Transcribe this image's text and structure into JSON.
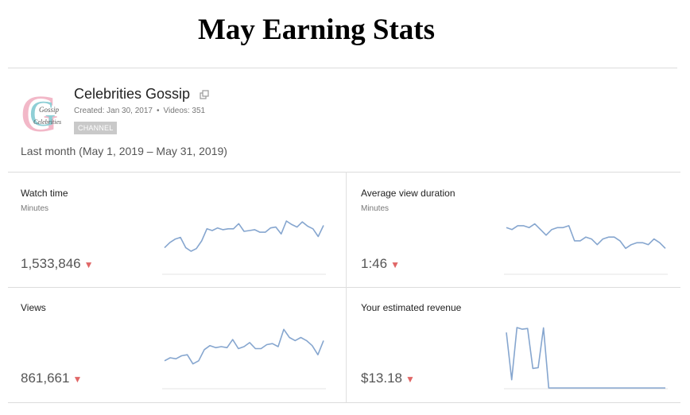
{
  "header": {
    "title": "May Earning Stats"
  },
  "channel": {
    "name": "Celebrities Gossip",
    "created": "Created: Jan 30, 2017",
    "videos": "Videos: 351",
    "badge": "CHANNEL",
    "logo_letters": "G",
    "logo_text_top": "Gossip",
    "logo_text_bottom": "Celebrities"
  },
  "period": "Last month (May 1, 2019 – May 31, 2019)",
  "colors": {
    "line": "#86a6cf",
    "down": "#e06666",
    "baseline": "#e6e6e6"
  },
  "metrics": [
    {
      "label": "Watch time",
      "sublabel": "Minutes",
      "value": "1,533,846",
      "trend": "down",
      "series": [
        30,
        36,
        40,
        42,
        30,
        26,
        29,
        38,
        52,
        50,
        53,
        51,
        52,
        52,
        58,
        49,
        50,
        51,
        48,
        48,
        53,
        54,
        46,
        61,
        57,
        54,
        60,
        55,
        52,
        43,
        56
      ]
    },
    {
      "label": "Average view duration",
      "sublabel": "",
      "value": "1:46",
      "trend": "down",
      "series": [
        104,
        103,
        105,
        105,
        104,
        106,
        103,
        100,
        103,
        104,
        104,
        105,
        97,
        97,
        99,
        98,
        95,
        98,
        99,
        99,
        97,
        93,
        95,
        96,
        96,
        95,
        98,
        96,
        93
      ]
    },
    {
      "label": "Views",
      "sublabel": "",
      "value": "861,661",
      "trend": "down",
      "series": [
        24000,
        27000,
        26000,
        29000,
        30000,
        21000,
        24000,
        35000,
        39000,
        37000,
        38000,
        37000,
        45000,
        36000,
        38000,
        42000,
        36000,
        36000,
        40000,
        41000,
        38000,
        55000,
        47000,
        44000,
        47000,
        44000,
        39000,
        30000,
        44000
      ]
    },
    {
      "label": "Your estimated revenue",
      "sublabel": "",
      "value": "$13.18",
      "trend": "down",
      "series": [
        1.7,
        0.25,
        1.85,
        1.8,
        1.82,
        0.6,
        0.62,
        1.84,
        0,
        0,
        0,
        0,
        0,
        0,
        0,
        0,
        0,
        0,
        0,
        0,
        0,
        0,
        0,
        0,
        0,
        0,
        0,
        0,
        0,
        0,
        0
      ]
    }
  ]
}
